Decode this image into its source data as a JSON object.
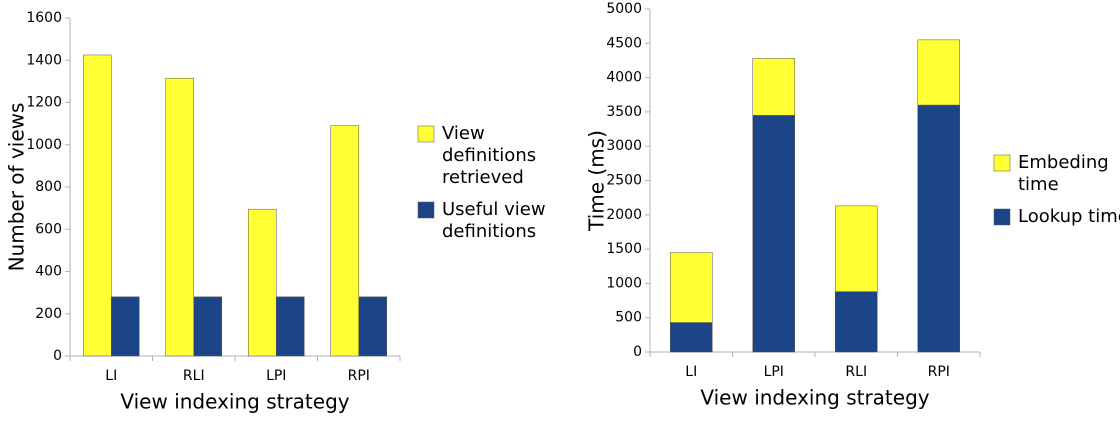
{
  "chart_data": [
    {
      "type": "bar",
      "categories": [
        "LI",
        "RLI",
        "LPI",
        "RPI"
      ],
      "series": [
        {
          "name": "View definitions retrieved",
          "color": "#ffff33",
          "values": [
            1425,
            1315,
            695,
            1090
          ]
        },
        {
          "name": "Useful view definitions",
          "color": "#1c4587",
          "values": [
            280,
            280,
            280,
            280
          ]
        }
      ],
      "xlabel": "View indexing strategy",
      "ylabel": "Number of views",
      "ylim": [
        0,
        1600
      ],
      "yticks": [
        0,
        200,
        400,
        600,
        800,
        1000,
        1200,
        1400,
        1600
      ],
      "grid": false,
      "legend": "right"
    },
    {
      "type": "stacked_bar",
      "categories": [
        "LI",
        "LPI",
        "RLI",
        "RPI"
      ],
      "series": [
        {
          "name": "Lookup time",
          "color": "#1c4587",
          "values": [
            430,
            3450,
            880,
            3600
          ]
        },
        {
          "name": "Embeding time",
          "color": "#ffff33",
          "values": [
            1020,
            830,
            1250,
            950
          ]
        }
      ],
      "xlabel": "View indexing strategy",
      "ylabel": "Time (ms)",
      "ylim": [
        0,
        5000
      ],
      "yticks": [
        0,
        500,
        1000,
        1500,
        2000,
        2500,
        3000,
        3500,
        4000,
        4500,
        5000
      ],
      "grid": false,
      "legend": "right"
    }
  ]
}
